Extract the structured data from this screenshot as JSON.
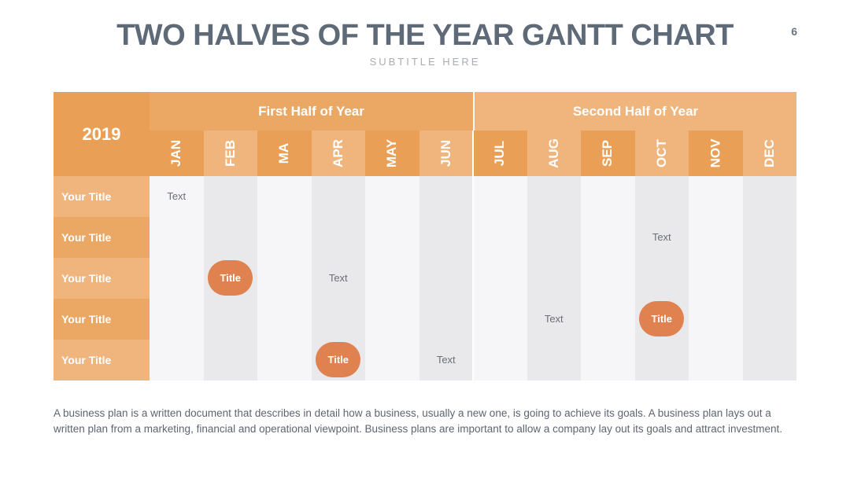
{
  "header": {
    "title": "TWO HALVES OF THE YEAR GANTT CHART",
    "subtitle": "SUBTITLE HERE",
    "page_number": "6"
  },
  "gantt": {
    "year": "2019",
    "halves": [
      "First Half of Year",
      "Second Half of Year"
    ],
    "months": [
      "JAN",
      "FEB",
      "MA",
      "APR",
      "MAY",
      "JUN",
      "JUL",
      "AUG",
      "SEP",
      "OCT",
      "NOV",
      "DEC"
    ],
    "rows": [
      "Your Title",
      "Your Title",
      "Your Title",
      "Your Title",
      "Your Title"
    ],
    "items": [
      {
        "row": 0,
        "month": 0,
        "kind": "text",
        "label": "Text"
      },
      {
        "row": 1,
        "month": 9,
        "kind": "text",
        "label": "Text"
      },
      {
        "row": 2,
        "month": 1,
        "kind": "pill",
        "label": "Title"
      },
      {
        "row": 2,
        "month": 3,
        "kind": "text",
        "label": "Text"
      },
      {
        "row": 3,
        "month": 7,
        "kind": "text",
        "label": "Text"
      },
      {
        "row": 3,
        "month": 9,
        "kind": "pill",
        "label": "Title"
      },
      {
        "row": 4,
        "month": 3,
        "kind": "pill",
        "label": "Title"
      },
      {
        "row": 4,
        "month": 5,
        "kind": "text",
        "label": "Text"
      }
    ]
  },
  "colors": {
    "header_dark": "#e9a056",
    "header_light": "#f0b57c",
    "row_light": "#f0b57c",
    "row_dark": "#eba865",
    "col_light": "#f6f6f8",
    "col_dark": "#e9e9eb",
    "pill": "#e0824f"
  },
  "description": "A business plan is a written document that describes in detail how a business, usually a new one, is going to achieve its goals. A business plan lays out a written plan from a marketing, financial and operational viewpoint. Business plans are important to allow a company lay out its goals and attract investment."
}
